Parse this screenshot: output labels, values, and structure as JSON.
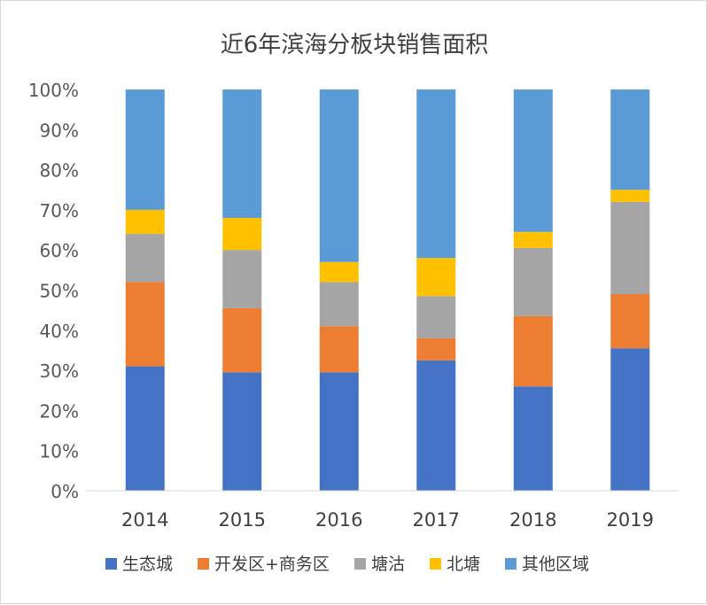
{
  "chart_data": {
    "type": "bar",
    "stacked": true,
    "normalized": true,
    "title": "近6年滨海分板块销售面积",
    "xlabel": "",
    "ylabel": "",
    "categories": [
      "2014",
      "2015",
      "2016",
      "2017",
      "2018",
      "2019"
    ],
    "ylim": [
      0,
      100
    ],
    "y_ticks": [
      "0%",
      "10%",
      "20%",
      "30%",
      "40%",
      "50%",
      "60%",
      "70%",
      "80%",
      "90%",
      "100%"
    ],
    "legend_position": "bottom",
    "grid": false,
    "series": [
      {
        "name": "生态城",
        "color": "#4472C4",
        "values": [
          31,
          29.5,
          29.5,
          32.5,
          26,
          35.5
        ]
      },
      {
        "name": "开发区+商务区",
        "color": "#ED7D31",
        "values": [
          21,
          16,
          11.5,
          5.5,
          17.5,
          13.5
        ]
      },
      {
        "name": "塘沽",
        "color": "#A5A5A5",
        "values": [
          12,
          14.5,
          11,
          10.5,
          17,
          23
        ]
      },
      {
        "name": "北塘",
        "color": "#FFC000",
        "values": [
          6,
          8,
          5,
          9.5,
          4,
          3
        ]
      },
      {
        "name": "其他区域",
        "color": "#5B9BD5",
        "values": [
          30,
          32,
          43,
          42,
          35.5,
          25
        ]
      }
    ]
  }
}
